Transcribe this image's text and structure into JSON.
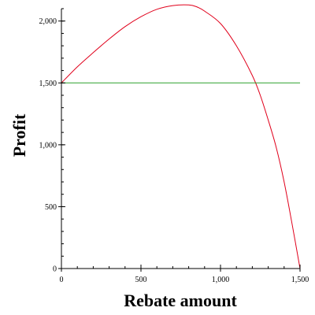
{
  "chart_data": {
    "type": "line",
    "title": "",
    "xlabel": "Rebate amount",
    "ylabel": "Profit",
    "xlim": [
      0,
      1500
    ],
    "ylim": [
      0,
      2100
    ],
    "grid": false,
    "legend": "none",
    "x_ticks": [
      {
        "value": 0,
        "label": "0"
      },
      {
        "value": 500,
        "label": "500"
      },
      {
        "value": 1000,
        "label": "1,000"
      },
      {
        "value": 1500,
        "label": "1,500"
      }
    ],
    "y_ticks": [
      {
        "value": 0,
        "label": "0"
      },
      {
        "value": 500,
        "label": "500"
      },
      {
        "value": 1000,
        "label": "1,000"
      },
      {
        "value": 1500,
        "label": "1,500"
      },
      {
        "value": 2000,
        "label": "2,000"
      }
    ],
    "series": [
      {
        "color": "#e0001b",
        "x": [
          0,
          100,
          200,
          300,
          400,
          500,
          600,
          700,
          800,
          850,
          900,
          1000,
          1100,
          1200,
          1250,
          1300,
          1350,
          1400,
          1450,
          1500
        ],
        "y": [
          1500,
          1630,
          1745,
          1855,
          1955,
          2035,
          2095,
          2125,
          2130,
          2115,
          2080,
          1980,
          1800,
          1560,
          1400,
          1200,
          980,
          700,
          360,
          0
        ]
      },
      {
        "color": "#2ca02c",
        "x": [
          0,
          1500
        ],
        "y": [
          1500,
          1500
        ]
      }
    ]
  }
}
